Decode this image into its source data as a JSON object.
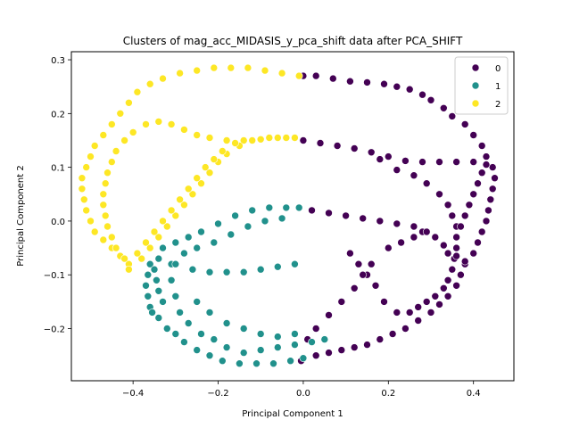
{
  "chart_data": {
    "type": "scatter",
    "title": "Clusters of mag_acc_MIDASIS_y_pca_shift data after PCA_SHIFT",
    "xlabel": "Principal Component 1",
    "ylabel": "Principal Component 2",
    "xlim": [
      -0.545,
      0.495
    ],
    "ylim": [
      -0.297,
      0.315
    ],
    "xticks": [
      "−0.4",
      "−0.2",
      "0.0",
      "0.2",
      "0.4"
    ],
    "xtick_values": [
      -0.4,
      -0.2,
      0.0,
      0.2,
      0.4
    ],
    "yticks": [
      "−0.2",
      "−0.1",
      "0.0",
      "0.1",
      "0.2",
      "0.3"
    ],
    "ytick_values": [
      -0.2,
      -0.1,
      0.0,
      0.1,
      0.2,
      0.3
    ],
    "grid": false,
    "legend_position": "top-right",
    "colors": {
      "0": "#440154",
      "1": "#21918c",
      "2": "#fde725"
    },
    "series": [
      {
        "name": "0",
        "color": "#440154",
        "points": [
          [
            0.0,
            0.27
          ],
          [
            0.03,
            0.27
          ],
          [
            0.07,
            0.265
          ],
          [
            0.11,
            0.26
          ],
          [
            0.15,
            0.258
          ],
          [
            0.19,
            0.255
          ],
          [
            0.22,
            0.25
          ],
          [
            0.25,
            0.245
          ],
          [
            0.28,
            0.235
          ],
          [
            0.3,
            0.225
          ],
          [
            0.33,
            0.21
          ],
          [
            0.35,
            0.195
          ],
          [
            0.38,
            0.18
          ],
          [
            0.4,
            0.16
          ],
          [
            0.42,
            0.14
          ],
          [
            0.43,
            0.12
          ],
          [
            0.445,
            0.1
          ],
          [
            0.45,
            0.08
          ],
          [
            0.445,
            0.06
          ],
          [
            0.44,
            0.04
          ],
          [
            0.435,
            0.02
          ],
          [
            0.43,
            0.0
          ],
          [
            0.42,
            -0.02
          ],
          [
            0.41,
            -0.04
          ],
          [
            0.4,
            -0.06
          ],
          [
            0.38,
            -0.08
          ],
          [
            0.37,
            -0.1
          ],
          [
            0.36,
            -0.12
          ],
          [
            0.34,
            -0.14
          ],
          [
            0.32,
            -0.155
          ],
          [
            0.3,
            -0.17
          ],
          [
            0.27,
            -0.185
          ],
          [
            0.24,
            -0.2
          ],
          [
            0.21,
            -0.21
          ],
          [
            0.18,
            -0.22
          ],
          [
            0.15,
            -0.23
          ],
          [
            0.12,
            -0.235
          ],
          [
            0.09,
            -0.24
          ],
          [
            0.06,
            -0.245
          ],
          [
            0.03,
            -0.25
          ],
          [
            0.0,
            -0.255
          ],
          [
            -0.005,
            -0.26
          ],
          [
            0.0,
            0.15
          ],
          [
            0.04,
            0.145
          ],
          [
            0.08,
            0.14
          ],
          [
            0.12,
            0.135
          ],
          [
            0.16,
            0.128
          ],
          [
            0.2,
            0.12
          ],
          [
            0.24,
            0.112
          ],
          [
            0.28,
            0.11
          ],
          [
            0.32,
            0.11
          ],
          [
            0.36,
            0.11
          ],
          [
            0.4,
            0.11
          ],
          [
            0.43,
            0.105
          ],
          [
            0.18,
            0.115
          ],
          [
            0.22,
            0.095
          ],
          [
            0.26,
            0.085
          ],
          [
            0.29,
            0.07
          ],
          [
            0.32,
            0.05
          ],
          [
            0.34,
            0.03
          ],
          [
            0.35,
            0.01
          ],
          [
            0.36,
            -0.01
          ],
          [
            0.36,
            -0.03
          ],
          [
            0.36,
            -0.05
          ],
          [
            0.355,
            -0.07
          ],
          [
            0.35,
            -0.09
          ],
          [
            0.34,
            -0.11
          ],
          [
            0.33,
            -0.125
          ],
          [
            0.31,
            -0.14
          ],
          [
            0.29,
            -0.15
          ],
          [
            0.27,
            -0.16
          ],
          [
            0.25,
            -0.17
          ],
          [
            0.02,
            0.02
          ],
          [
            0.06,
            0.015
          ],
          [
            0.1,
            0.01
          ],
          [
            0.14,
            0.005
          ],
          [
            0.18,
            0.0
          ],
          [
            0.22,
            -0.005
          ],
          [
            0.26,
            -0.01
          ],
          [
            0.28,
            -0.02
          ],
          [
            0.31,
            -0.03
          ],
          [
            0.33,
            -0.045
          ],
          [
            0.34,
            -0.06
          ],
          [
            0.36,
            -0.065
          ],
          [
            0.38,
            -0.075
          ],
          [
            0.42,
            0.09
          ],
          [
            0.41,
            0.07
          ],
          [
            0.4,
            0.05
          ],
          [
            0.39,
            0.03
          ],
          [
            0.38,
            0.01
          ],
          [
            0.37,
            -0.01
          ],
          [
            0.11,
            -0.06
          ],
          [
            0.13,
            -0.08
          ],
          [
            0.15,
            -0.1
          ],
          [
            0.17,
            -0.12
          ],
          [
            0.19,
            -0.15
          ],
          [
            0.22,
            -0.17
          ],
          [
            0.01,
            -0.22
          ],
          [
            0.03,
            -0.2
          ],
          [
            0.06,
            -0.175
          ],
          [
            0.09,
            -0.15
          ],
          [
            0.12,
            -0.125
          ],
          [
            0.14,
            -0.1
          ],
          [
            0.16,
            -0.08
          ],
          [
            0.2,
            -0.05
          ],
          [
            0.23,
            -0.04
          ],
          [
            0.26,
            -0.03
          ],
          [
            0.29,
            -0.02
          ]
        ]
      },
      {
        "name": "1",
        "color": "#21918c",
        "points": [
          [
            -0.36,
            -0.08
          ],
          [
            -0.365,
            -0.1
          ],
          [
            -0.37,
            -0.12
          ],
          [
            -0.365,
            -0.14
          ],
          [
            -0.36,
            -0.16
          ],
          [
            -0.355,
            -0.17
          ],
          [
            -0.34,
            -0.18
          ],
          [
            -0.32,
            -0.2
          ],
          [
            -0.3,
            -0.21
          ],
          [
            -0.28,
            -0.225
          ],
          [
            -0.25,
            -0.24
          ],
          [
            -0.22,
            -0.25
          ],
          [
            -0.19,
            -0.26
          ],
          [
            -0.15,
            -0.265
          ],
          [
            -0.11,
            -0.265
          ],
          [
            -0.07,
            -0.265
          ],
          [
            -0.03,
            -0.26
          ],
          [
            0.0,
            -0.255
          ],
          [
            -0.35,
            -0.09
          ],
          [
            -0.345,
            -0.11
          ],
          [
            -0.34,
            -0.13
          ],
          [
            -0.33,
            -0.15
          ],
          [
            -0.31,
            -0.08
          ],
          [
            -0.31,
            -0.11
          ],
          [
            -0.3,
            -0.14
          ],
          [
            -0.29,
            -0.17
          ],
          [
            -0.27,
            -0.19
          ],
          [
            -0.24,
            -0.21
          ],
          [
            -0.21,
            -0.22
          ],
          [
            -0.18,
            -0.235
          ],
          [
            -0.14,
            -0.245
          ],
          [
            -0.1,
            -0.24
          ],
          [
            -0.06,
            -0.235
          ],
          [
            -0.02,
            -0.23
          ],
          [
            0.02,
            -0.225
          ],
          [
            0.05,
            -0.22
          ],
          [
            -0.34,
            -0.07
          ],
          [
            -0.3,
            -0.08
          ],
          [
            -0.26,
            -0.09
          ],
          [
            -0.22,
            -0.095
          ],
          [
            -0.18,
            -0.095
          ],
          [
            -0.14,
            -0.095
          ],
          [
            -0.1,
            -0.09
          ],
          [
            -0.06,
            -0.085
          ],
          [
            -0.02,
            -0.08
          ],
          [
            -0.33,
            -0.05
          ],
          [
            -0.3,
            -0.04
          ],
          [
            -0.27,
            -0.03
          ],
          [
            -0.24,
            -0.02
          ],
          [
            -0.2,
            -0.005
          ],
          [
            -0.16,
            0.01
          ],
          [
            -0.12,
            0.02
          ],
          [
            -0.08,
            0.025
          ],
          [
            -0.04,
            0.025
          ],
          [
            -0.01,
            0.025
          ],
          [
            -0.28,
            -0.06
          ],
          [
            -0.25,
            -0.05
          ],
          [
            -0.21,
            -0.04
          ],
          [
            -0.17,
            -0.025
          ],
          [
            -0.13,
            -0.01
          ],
          [
            -0.09,
            0.0
          ],
          [
            -0.05,
            0.005
          ],
          [
            -0.25,
            -0.15
          ],
          [
            -0.22,
            -0.17
          ],
          [
            -0.18,
            -0.19
          ],
          [
            -0.14,
            -0.2
          ],
          [
            -0.1,
            -0.21
          ],
          [
            -0.06,
            -0.215
          ],
          [
            -0.02,
            -0.21
          ]
        ]
      },
      {
        "name": "2",
        "color": "#fde725",
        "points": [
          [
            -0.52,
            0.08
          ],
          [
            -0.52,
            0.06
          ],
          [
            -0.515,
            0.04
          ],
          [
            -0.51,
            0.02
          ],
          [
            -0.5,
            0.0
          ],
          [
            -0.49,
            -0.02
          ],
          [
            -0.47,
            -0.035
          ],
          [
            -0.45,
            -0.05
          ],
          [
            -0.43,
            -0.065
          ],
          [
            -0.41,
            -0.08
          ],
          [
            -0.51,
            0.1
          ],
          [
            -0.5,
            0.12
          ],
          [
            -0.49,
            0.14
          ],
          [
            -0.47,
            0.16
          ],
          [
            -0.45,
            0.18
          ],
          [
            -0.43,
            0.2
          ],
          [
            -0.41,
            0.22
          ],
          [
            -0.39,
            0.24
          ],
          [
            -0.36,
            0.255
          ],
          [
            -0.33,
            0.265
          ],
          [
            -0.29,
            0.275
          ],
          [
            -0.25,
            0.28
          ],
          [
            -0.21,
            0.285
          ],
          [
            -0.17,
            0.285
          ],
          [
            -0.13,
            0.285
          ],
          [
            -0.09,
            0.28
          ],
          [
            -0.05,
            0.275
          ],
          [
            -0.01,
            0.27
          ],
          [
            -0.47,
            0.05
          ],
          [
            -0.465,
            0.07
          ],
          [
            -0.46,
            0.09
          ],
          [
            -0.45,
            0.11
          ],
          [
            -0.44,
            0.13
          ],
          [
            -0.42,
            0.15
          ],
          [
            -0.4,
            0.165
          ],
          [
            -0.37,
            0.18
          ],
          [
            -0.34,
            0.185
          ],
          [
            -0.31,
            0.18
          ],
          [
            -0.28,
            0.17
          ],
          [
            -0.25,
            0.16
          ],
          [
            -0.22,
            0.155
          ],
          [
            -0.18,
            0.15
          ],
          [
            -0.14,
            0.15
          ],
          [
            -0.1,
            0.152
          ],
          [
            -0.06,
            0.155
          ],
          [
            -0.02,
            0.155
          ],
          [
            -0.47,
            0.03
          ],
          [
            -0.465,
            0.01
          ],
          [
            -0.46,
            -0.01
          ],
          [
            -0.45,
            -0.03
          ],
          [
            -0.44,
            -0.05
          ],
          [
            -0.42,
            -0.07
          ],
          [
            -0.41,
            -0.09
          ],
          [
            -0.38,
            -0.07
          ],
          [
            -0.36,
            -0.05
          ],
          [
            -0.34,
            -0.03
          ],
          [
            -0.32,
            -0.01
          ],
          [
            -0.3,
            0.01
          ],
          [
            -0.28,
            0.03
          ],
          [
            -0.26,
            0.05
          ],
          [
            -0.24,
            0.07
          ],
          [
            -0.22,
            0.09
          ],
          [
            -0.2,
            0.11
          ],
          [
            -0.18,
            0.125
          ],
          [
            -0.15,
            0.14
          ],
          [
            -0.12,
            0.15
          ],
          [
            -0.08,
            0.155
          ],
          [
            -0.04,
            0.155
          ],
          [
            -0.39,
            -0.06
          ],
          [
            -0.37,
            -0.04
          ],
          [
            -0.35,
            -0.02
          ],
          [
            -0.33,
            0.0
          ],
          [
            -0.31,
            0.02
          ],
          [
            -0.29,
            0.04
          ],
          [
            -0.27,
            0.06
          ],
          [
            -0.25,
            0.08
          ],
          [
            -0.23,
            0.1
          ],
          [
            -0.21,
            0.115
          ],
          [
            -0.19,
            0.13
          ],
          [
            -0.16,
            0.145
          ]
        ]
      }
    ]
  }
}
